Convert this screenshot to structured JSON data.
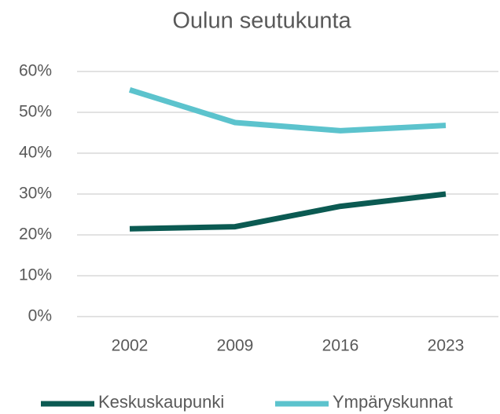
{
  "chart_data": {
    "type": "line",
    "title": "Oulun seutukunta",
    "categories": [
      "2002",
      "2009",
      "2016",
      "2023"
    ],
    "series": [
      {
        "name": "Keskuskaupunki",
        "color": "#0b5a52",
        "values": [
          21.5,
          22,
          27,
          30
        ]
      },
      {
        "name": "Ympäryskunnat",
        "color": "#5cc3cd",
        "values": [
          55.5,
          47.5,
          45.5,
          46.8
        ]
      }
    ],
    "ylim": [
      0,
      60
    ],
    "yticks": [
      {
        "value": 0,
        "label": "0%"
      },
      {
        "value": 10,
        "label": "10%"
      },
      {
        "value": 20,
        "label": "20%"
      },
      {
        "value": 30,
        "label": "30%"
      },
      {
        "value": 40,
        "label": "40%"
      },
      {
        "value": 50,
        "label": "50%"
      },
      {
        "value": 60,
        "label": "60%"
      }
    ],
    "grid": true,
    "legend": "bottom"
  }
}
